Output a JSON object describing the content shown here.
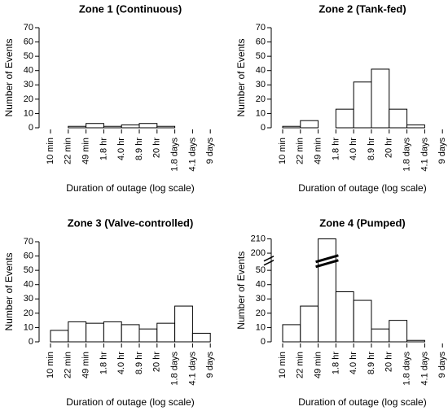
{
  "chart_data": [
    {
      "type": "histogram",
      "title": "Zone 1 (Continuous)",
      "xlabel": "Duration of outage (log scale)",
      "ylabel": "Number of Events",
      "bins": [
        "10 min",
        "22 min",
        "49 min",
        "1.8 hr",
        "4.0 hr",
        "8.9 hr",
        "20 hr",
        "1.8 days",
        "4.1 days",
        "9 days"
      ],
      "values": [
        0,
        1,
        3,
        1,
        2,
        3,
        1,
        0,
        0
      ],
      "color": "#ffffff",
      "ylim": [
        0,
        70
      ],
      "yticks": [
        0,
        10,
        20,
        30,
        40,
        50,
        60,
        70
      ]
    },
    {
      "type": "histogram",
      "title": "Zone 2 (Tank-fed)",
      "xlabel": "Duration of outage (log scale)",
      "ylabel": "Number of Events",
      "bins": [
        "10 min",
        "22 min",
        "49 min",
        "1.8 hr",
        "4.0 hr",
        "8.9 hr",
        "20 hr",
        "1.8 days",
        "4.1 days",
        "9 days"
      ],
      "values": [
        1,
        5,
        0,
        13,
        32,
        41,
        13,
        2,
        0
      ],
      "color": "#ffffff",
      "ylim": [
        0,
        70
      ],
      "yticks": [
        0,
        10,
        20,
        30,
        40,
        50,
        60,
        70
      ]
    },
    {
      "type": "histogram",
      "title": "Zone 3 (Valve-controlled)",
      "xlabel": "Duration of outage (log scale)",
      "ylabel": "Number of Events",
      "bins": [
        "10 min",
        "22 min",
        "49 min",
        "1.8 hr",
        "4.0 hr",
        "8.9 hr",
        "20 hr",
        "1.8 days",
        "4.1 days",
        "9 days"
      ],
      "values": [
        8,
        14,
        13,
        14,
        12,
        9,
        13,
        25,
        6
      ],
      "color": "#ffffff",
      "ylim": [
        0,
        70
      ],
      "yticks": [
        0,
        10,
        20,
        30,
        40,
        50,
        60,
        70
      ]
    },
    {
      "type": "histogram",
      "title": "Zone 4 (Pumped)",
      "xlabel": "Duration of outage (log scale)",
      "ylabel": "Number of Events",
      "bins": [
        "10 min",
        "22 min",
        "49 min",
        "1.8 hr",
        "4.0 hr",
        "8.9 hr",
        "20 hr",
        "1.8 days",
        "4.1 days",
        "9 days"
      ],
      "values": [
        12,
        25,
        210,
        35,
        29,
        9,
        15,
        1,
        0
      ],
      "color": "#ffffff",
      "ylim": [
        0,
        210
      ],
      "ybreak": [
        57,
        195
      ],
      "yticks": [
        0,
        10,
        20,
        30,
        40,
        50,
        200,
        210
      ]
    }
  ]
}
